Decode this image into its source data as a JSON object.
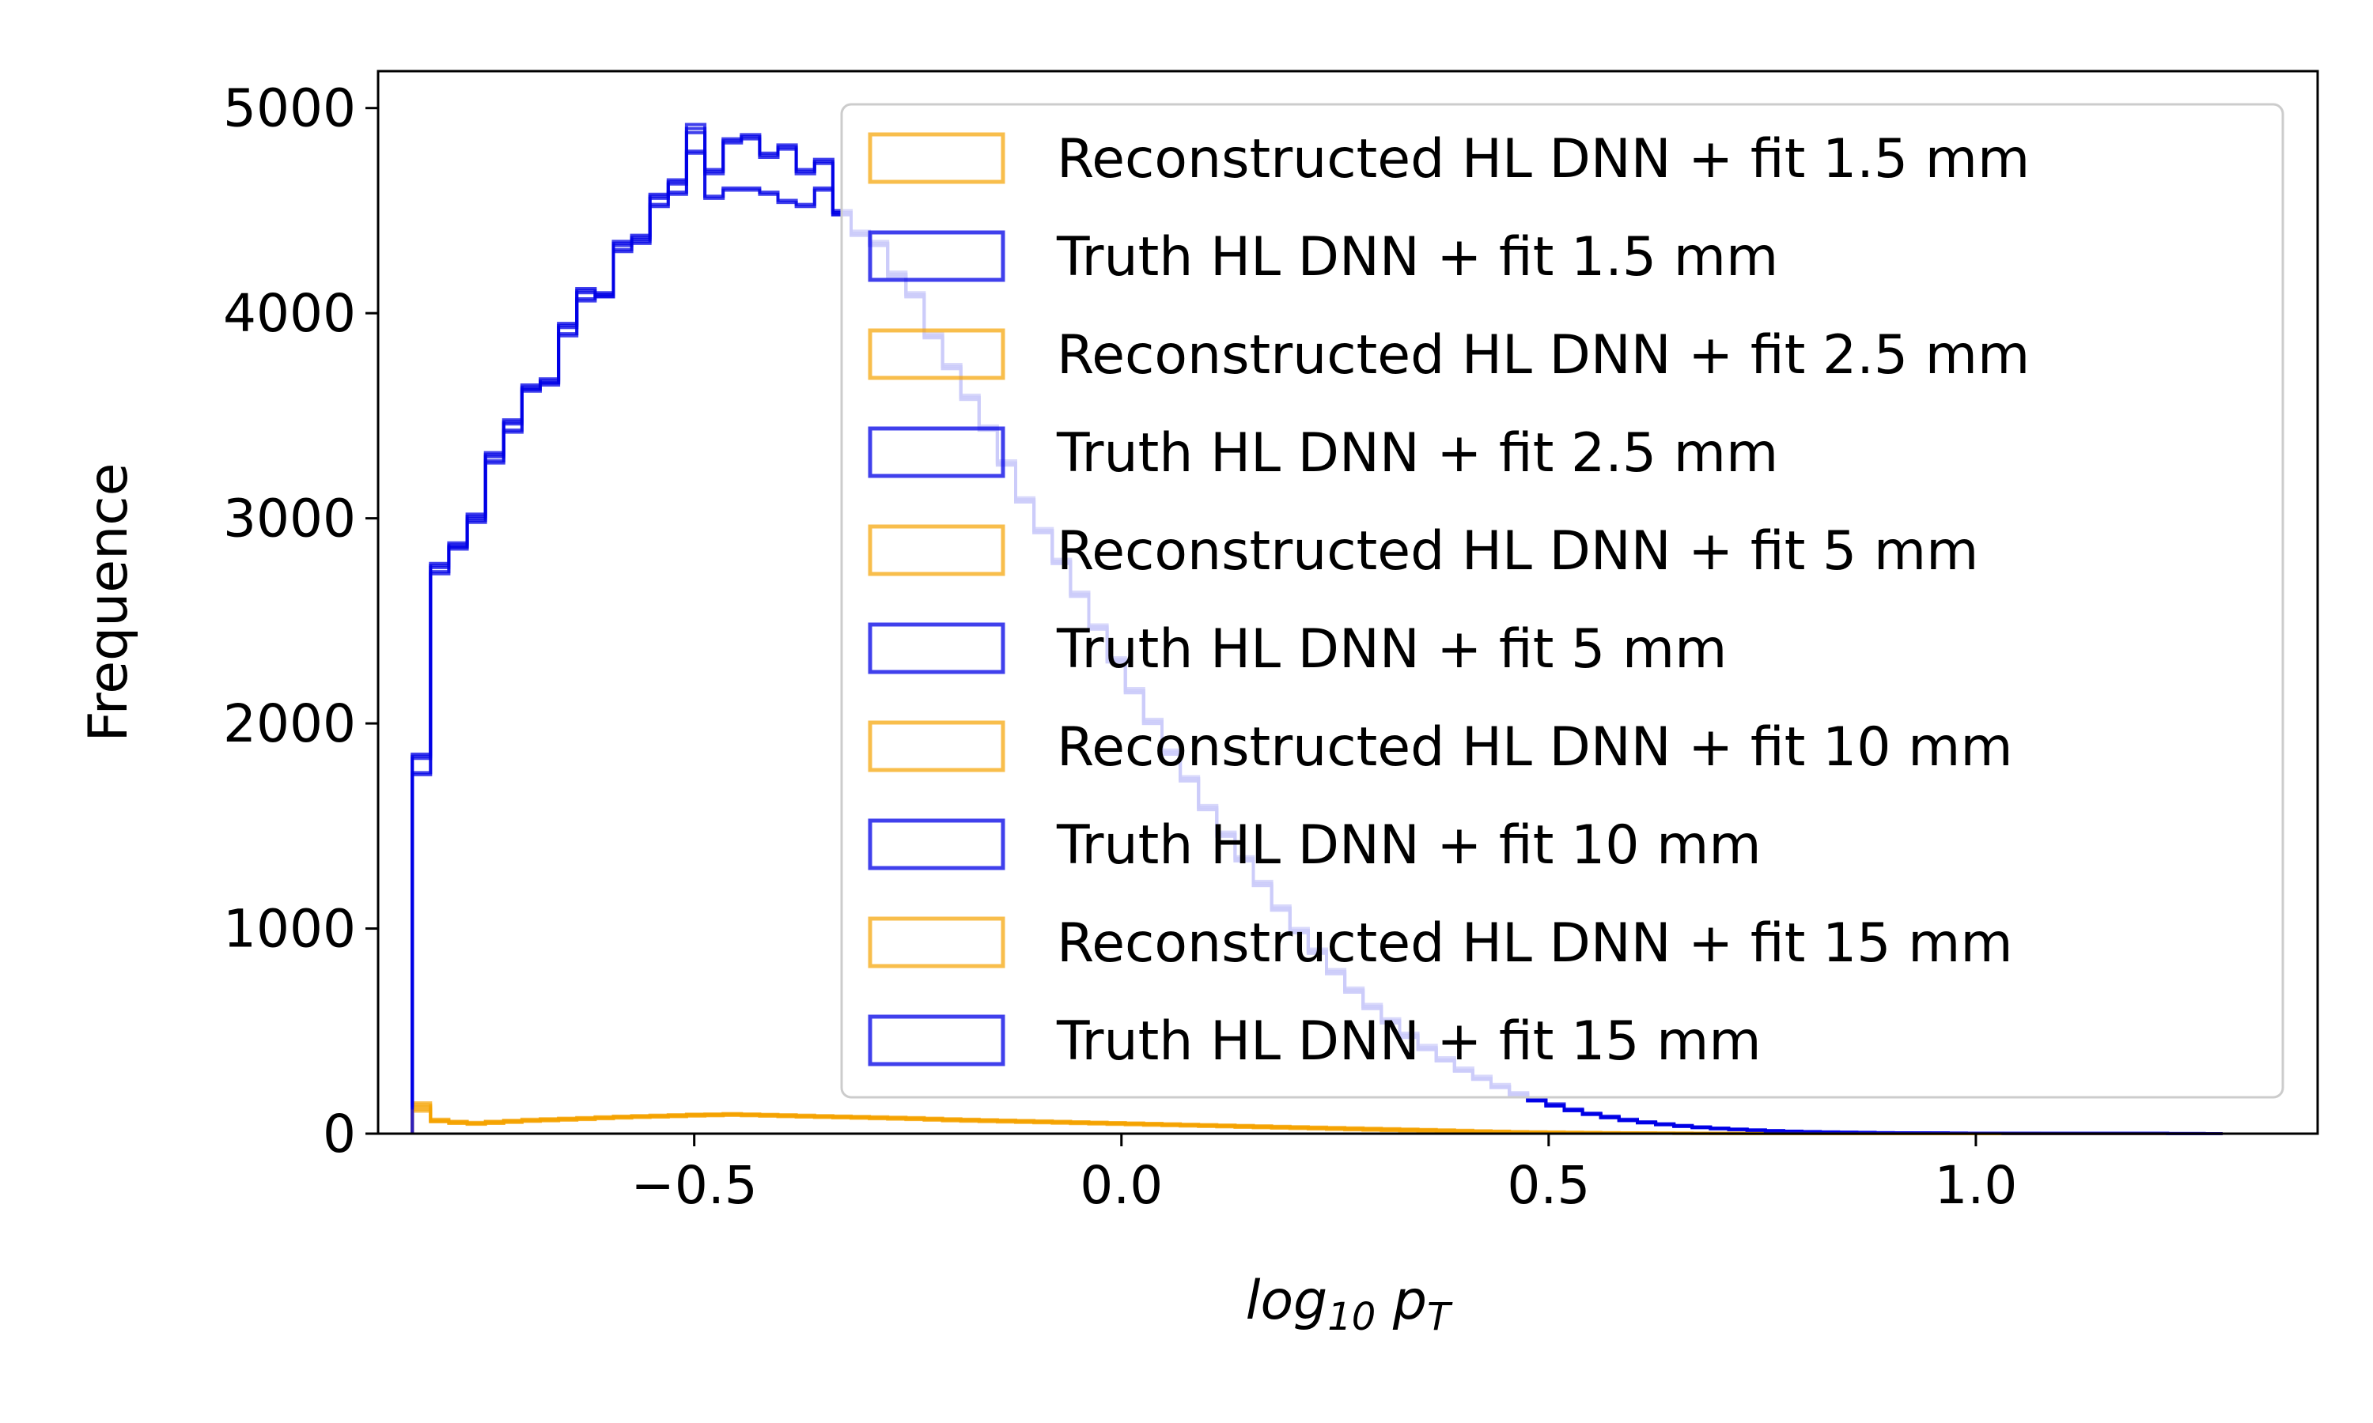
{
  "chart_data": {
    "type": "histogram",
    "title": "",
    "xlabel": {
      "base": "log",
      "sub1": "10",
      "mid": " p",
      "sub2": "T"
    },
    "ylabel": "Frequence",
    "xlim": [
      -0.87,
      1.4
    ],
    "ylim": [
      0,
      5180
    ],
    "xticks": [
      -0.5,
      0.0,
      0.5,
      1.0
    ],
    "xtick_labels": [
      "−0.5",
      "0.0",
      "0.5",
      "1.0"
    ],
    "yticks": [
      0,
      1000,
      2000,
      3000,
      4000,
      5000
    ],
    "ytick_labels": [
      "0",
      "1000",
      "2000",
      "3000",
      "4000",
      "5000"
    ],
    "grid": false,
    "legend_position": "upper right",
    "bin_start": -0.83,
    "bin_width": 0.0214,
    "colors": {
      "reconstructed": "#f5a300",
      "truth": "#0000e6"
    },
    "series": [
      {
        "name": "Reconstructed HL DNN + fit 1.5 mm",
        "kind": "reconstructed",
        "values": [
          150,
          70,
          60,
          55,
          60,
          65,
          70,
          72,
          75,
          78,
          82,
          85,
          88,
          90,
          92,
          95,
          96,
          98,
          96,
          94,
          92,
          90,
          88,
          86,
          84,
          82,
          80,
          78,
          75,
          72,
          70,
          68,
          66,
          64,
          62,
          60,
          58,
          56,
          54,
          52,
          50,
          48,
          46,
          44,
          42,
          40,
          38,
          36,
          34,
          32,
          30,
          28,
          26,
          24,
          22,
          20,
          18,
          16,
          14,
          12,
          10,
          9,
          8,
          7,
          6,
          5,
          4,
          4,
          3,
          3,
          2,
          2,
          2,
          1,
          1,
          1,
          1,
          1,
          1,
          1,
          0,
          0,
          0,
          0,
          0,
          0,
          0,
          0,
          0,
          0,
          0,
          0,
          0,
          0,
          0,
          0,
          0,
          0,
          0
        ]
      },
      {
        "name": "Truth HL DNN + fit 1.5 mm",
        "kind": "truth",
        "values": [
          1850,
          2780,
          2880,
          3020,
          3320,
          3480,
          3650,
          3680,
          3950,
          4120,
          4100,
          4350,
          4380,
          4580,
          4650,
          4920,
          4700,
          4850,
          4870,
          4780,
          4820,
          4700,
          4750,
          4500,
          4400,
          4350,
          4200,
          4100,
          3900,
          3750,
          3600,
          3450,
          3280,
          3100,
          2950,
          2800,
          2640,
          2480,
          2320,
          2170,
          2020,
          1870,
          1740,
          1600,
          1470,
          1350,
          1230,
          1110,
          1000,
          900,
          800,
          710,
          630,
          560,
          490,
          430,
          370,
          320,
          280,
          240,
          200,
          170,
          145,
          120,
          100,
          85,
          70,
          58,
          48,
          40,
          33,
          27,
          22,
          18,
          15,
          12,
          10,
          8,
          7,
          6,
          5,
          4,
          4,
          3,
          3,
          2,
          2,
          2,
          2,
          1,
          1,
          1,
          1,
          1,
          1,
          1,
          1,
          1,
          0
        ]
      },
      {
        "name": "Reconstructed HL DNN + fit 2.5 mm",
        "kind": "reconstructed",
        "values": [
          140,
          65,
          58,
          52,
          58,
          62,
          66,
          70,
          73,
          76,
          80,
          83,
          86,
          88,
          90,
          93,
          94,
          96,
          94,
          92,
          90,
          88,
          86,
          84,
          82,
          80,
          78,
          76,
          73,
          70,
          68,
          66,
          64,
          62,
          60,
          58,
          56,
          54,
          52,
          50,
          48,
          46,
          44,
          42,
          40,
          38,
          36,
          34,
          32,
          30,
          28,
          26,
          24,
          22,
          20,
          18,
          16,
          14,
          12,
          11,
          9,
          8,
          7,
          6,
          5,
          4,
          4,
          3,
          3,
          2,
          2,
          2,
          1,
          1,
          1,
          1,
          1,
          1,
          1,
          0,
          0,
          0,
          0,
          0,
          0,
          0,
          0,
          0,
          0,
          0,
          0,
          0,
          0,
          0,
          0,
          0,
          0,
          0,
          0
        ]
      },
      {
        "name": "Truth HL DNN + fit 2.5 mm",
        "kind": "truth",
        "values": [
          1750,
          2730,
          2850,
          2980,
          3270,
          3420,
          3620,
          3650,
          3890,
          4060,
          4080,
          4300,
          4340,
          4520,
          4580,
          4780,
          4560,
          4600,
          4600,
          4580,
          4540,
          4520,
          4600,
          4480,
          4380,
          4330,
          4180,
          4080,
          3880,
          3730,
          3580,
          3430,
          3260,
          3080,
          2930,
          2780,
          2620,
          2460,
          2300,
          2150,
          2000,
          1850,
          1720,
          1580,
          1450,
          1330,
          1210,
          1090,
          980,
          880,
          780,
          690,
          610,
          540,
          470,
          410,
          355,
          305,
          265,
          225,
          190,
          160,
          135,
          112,
          94,
          78,
          64,
          53,
          44,
          36,
          30,
          24,
          20,
          16,
          13,
          11,
          9,
          7,
          6,
          5,
          4,
          4,
          3,
          3,
          2,
          2,
          2,
          1,
          1,
          1,
          1,
          1,
          1,
          1,
          1,
          1,
          0,
          0,
          0
        ]
      },
      {
        "name": "Reconstructed HL DNN + fit 5 mm",
        "kind": "reconstructed",
        "values": [
          130,
          62,
          55,
          50,
          55,
          60,
          64,
          68,
          71,
          74,
          78,
          81,
          84,
          86,
          88,
          91,
          92,
          94,
          92,
          90,
          88,
          86,
          84,
          82,
          80,
          78,
          76,
          74,
          71,
          68,
          66,
          64,
          62,
          60,
          58,
          56,
          54,
          52,
          50,
          48,
          46,
          44,
          42,
          40,
          38,
          36,
          34,
          32,
          30,
          28,
          26,
          24,
          22,
          20,
          18,
          16,
          14,
          13,
          11,
          10,
          8,
          7,
          6,
          5,
          4,
          4,
          3,
          3,
          2,
          2,
          2,
          1,
          1,
          1,
          1,
          1,
          1,
          1,
          0,
          0,
          0,
          0,
          0,
          0,
          0,
          0,
          0,
          0,
          0,
          0,
          0,
          0,
          0,
          0,
          0,
          0,
          0,
          0,
          0
        ]
      },
      {
        "name": "Truth HL DNN + fit 5 mm",
        "kind": "truth",
        "values": [
          1840,
          2770,
          2870,
          3010,
          3310,
          3470,
          3640,
          3670,
          3940,
          4110,
          4090,
          4340,
          4370,
          4570,
          4640,
          4900,
          4690,
          4840,
          4860,
          4770,
          4810,
          4690,
          4740,
          4490,
          4390,
          4340,
          4190,
          4090,
          3890,
          3740,
          3590,
          3440,
          3270,
          3090,
          2940,
          2790,
          2630,
          2470,
          2310,
          2160,
          2010,
          1860,
          1730,
          1590,
          1460,
          1340,
          1220,
          1100,
          990,
          890,
          790,
          700,
          620,
          550,
          480,
          420,
          360,
          310,
          270,
          230,
          195,
          165,
          140,
          116,
          97,
          81,
          67,
          55,
          46,
          38,
          31,
          26,
          21,
          17,
          14,
          11,
          9,
          8,
          6,
          5,
          4,
          4,
          3,
          3,
          2,
          2,
          2,
          1,
          1,
          1,
          1,
          1,
          1,
          1,
          1,
          1,
          0,
          0,
          0
        ]
      },
      {
        "name": "Reconstructed HL DNN + fit 10 mm",
        "kind": "reconstructed",
        "values": [
          120,
          60,
          52,
          48,
          52,
          57,
          62,
          65,
          68,
          71,
          75,
          78,
          81,
          83,
          85,
          88,
          89,
          91,
          89,
          87,
          85,
          83,
          81,
          79,
          77,
          75,
          73,
          71,
          68,
          65,
          63,
          61,
          59,
          57,
          55,
          53,
          51,
          49,
          47,
          45,
          43,
          41,
          39,
          37,
          35,
          33,
          31,
          29,
          27,
          25,
          23,
          21,
          19,
          17,
          15,
          14,
          12,
          11,
          10,
          9,
          7,
          6,
          5,
          4,
          4,
          3,
          3,
          2,
          2,
          2,
          1,
          1,
          1,
          1,
          1,
          1,
          1,
          0,
          0,
          0,
          0,
          0,
          0,
          0,
          0,
          0,
          0,
          0,
          0,
          0,
          0,
          0,
          0,
          0,
          0,
          0,
          0,
          0,
          0
        ]
      },
      {
        "name": "Truth HL DNN + fit 10 mm",
        "kind": "truth",
        "values": [
          1760,
          2740,
          2860,
          2990,
          3280,
          3430,
          3630,
          3660,
          3900,
          4070,
          4090,
          4310,
          4350,
          4530,
          4590,
          4790,
          4570,
          4610,
          4610,
          4590,
          4550,
          4530,
          4610,
          4490,
          4390,
          4340,
          4190,
          4090,
          3890,
          3740,
          3590,
          3440,
          3270,
          3090,
          2940,
          2790,
          2630,
          2470,
          2310,
          2160,
          2010,
          1860,
          1730,
          1590,
          1460,
          1340,
          1220,
          1100,
          990,
          890,
          790,
          700,
          620,
          550,
          480,
          415,
          358,
          308,
          267,
          228,
          192,
          162,
          137,
          114,
          95,
          79,
          65,
          54,
          45,
          37,
          30,
          25,
          20,
          16,
          13,
          11,
          9,
          7,
          6,
          5,
          4,
          4,
          3,
          3,
          2,
          2,
          2,
          1,
          1,
          1,
          1,
          1,
          1,
          1,
          1,
          1,
          0,
          0,
          0
        ]
      },
      {
        "name": "Reconstructed HL DNN + fit 15 mm",
        "kind": "reconstructed",
        "values": [
          110,
          58,
          50,
          46,
          50,
          55,
          60,
          63,
          66,
          69,
          73,
          76,
          79,
          81,
          83,
          86,
          87,
          89,
          87,
          85,
          83,
          81,
          79,
          77,
          75,
          73,
          71,
          69,
          66,
          63,
          61,
          59,
          57,
          55,
          53,
          51,
          49,
          47,
          45,
          43,
          41,
          39,
          37,
          35,
          33,
          31,
          29,
          27,
          25,
          23,
          21,
          19,
          17,
          15,
          14,
          12,
          11,
          10,
          9,
          8,
          7,
          6,
          5,
          4,
          3,
          3,
          2,
          2,
          2,
          1,
          1,
          1,
          1,
          1,
          1,
          1,
          0,
          0,
          0,
          0,
          0,
          0,
          0,
          0,
          0,
          0,
          0,
          0,
          0,
          0,
          0,
          0,
          0,
          0,
          0,
          0,
          0,
          0,
          0
        ]
      },
      {
        "name": "Truth HL DNN + fit 15 mm",
        "kind": "truth",
        "values": [
          1830,
          2760,
          2860,
          3000,
          3300,
          3460,
          3630,
          3660,
          3930,
          4100,
          4080,
          4330,
          4360,
          4560,
          4630,
          4880,
          4680,
          4830,
          4850,
          4760,
          4800,
          4680,
          4730,
          4480,
          4380,
          4330,
          4180,
          4080,
          3880,
          3730,
          3580,
          3430,
          3260,
          3080,
          2930,
          2780,
          2620,
          2460,
          2300,
          2150,
          2000,
          1850,
          1720,
          1580,
          1450,
          1330,
          1210,
          1090,
          980,
          880,
          780,
          690,
          610,
          540,
          470,
          410,
          355,
          305,
          265,
          225,
          190,
          160,
          135,
          112,
          94,
          78,
          64,
          53,
          44,
          36,
          30,
          24,
          20,
          16,
          13,
          11,
          9,
          7,
          6,
          5,
          4,
          4,
          3,
          3,
          2,
          2,
          2,
          1,
          1,
          1,
          1,
          1,
          1,
          1,
          1,
          1,
          0,
          0,
          0
        ]
      }
    ]
  }
}
